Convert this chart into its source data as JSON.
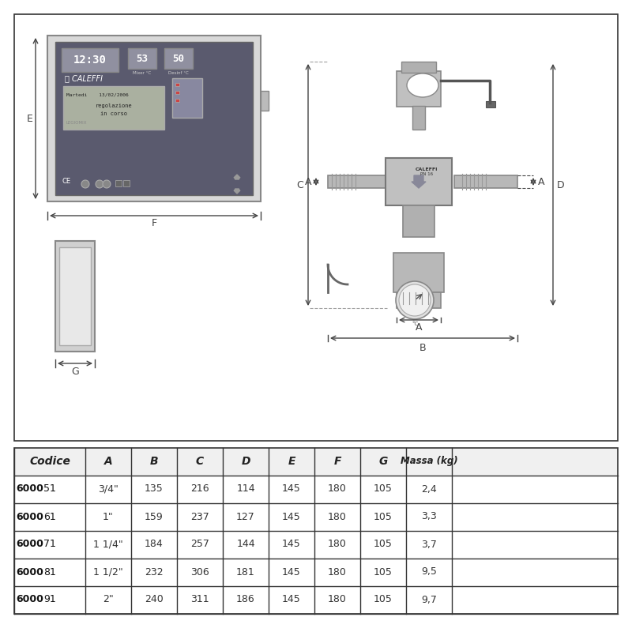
{
  "bg_color": "#ffffff",
  "border_color": "#222222",
  "table_header": [
    "Codice",
    "A",
    "B",
    "C",
    "D",
    "E",
    "F",
    "G",
    "Massa (kg)"
  ],
  "table_rows": [
    [
      "6000",
      "51",
      "3/4\"",
      "135",
      "216",
      "114",
      "145",
      "180",
      "105",
      "2,4"
    ],
    [
      "6000",
      "61",
      "1\"",
      "159",
      "237",
      "127",
      "145",
      "180",
      "105",
      "3,3"
    ],
    [
      "6000",
      "71",
      "1 1/4\"",
      "184",
      "257",
      "144",
      "145",
      "180",
      "105",
      "3,7"
    ],
    [
      "6000",
      "81",
      "1 1/2\"",
      "232",
      "306",
      "181",
      "145",
      "180",
      "105",
      "9,5"
    ],
    [
      "6000",
      "91",
      "2\"",
      "240",
      "311",
      "186",
      "145",
      "180",
      "105",
      "9,7"
    ]
  ],
  "panel_color": "#c8c8c8",
  "panel_dark": "#555566",
  "display_color": "#888899",
  "screen_color": "#aaaaaa",
  "valve_color": "#999999",
  "valve_dark": "#777777",
  "line_color": "#333333",
  "dim_color": "#444444"
}
